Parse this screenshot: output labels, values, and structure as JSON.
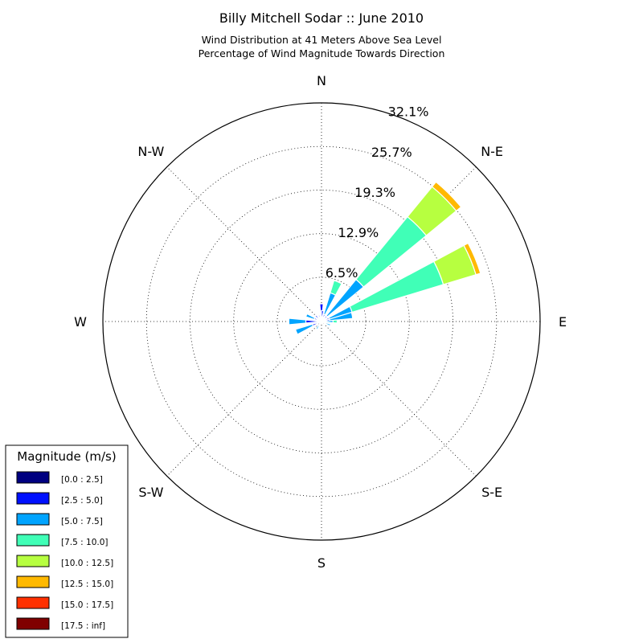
{
  "chart_data": {
    "type": "windrose",
    "title": "Billy Mitchell Sodar :: June 2010",
    "subtitle_lines": [
      "Wind Distribution at 41 Meters Above Sea Level",
      "Percentage of Wind Magnitude Towards Direction"
    ],
    "direction_labels": [
      {
        "label": "N",
        "angle": 0
      },
      {
        "label": "N-E",
        "angle": 45
      },
      {
        "label": "E",
        "angle": 90
      },
      {
        "label": "S-E",
        "angle": 135
      },
      {
        "label": "S",
        "angle": 180
      },
      {
        "label": "S-W",
        "angle": 225
      },
      {
        "label": "W",
        "angle": 270
      },
      {
        "label": "N-W",
        "angle": 315
      }
    ],
    "radial_ticks": [
      6.5,
      12.9,
      19.3,
      25.7,
      32.1
    ],
    "radial_tick_labels": [
      "6.5%",
      "12.9%",
      "19.3%",
      "25.7%",
      "32.1%"
    ],
    "r_max": 32.1,
    "grid": true,
    "legend": {
      "title": "Magnitude (m/s)",
      "placement": "bottom-left",
      "bins": [
        {
          "label": "[0.0 : 2.5]",
          "color": "#000080"
        },
        {
          "label": "[2.5 : 5.0]",
          "color": "#0010ff"
        },
        {
          "label": "[5.0 : 7.5]",
          "color": "#00a4ff"
        },
        {
          "label": "[7.5 : 10.0]",
          "color": "#40ffb7"
        },
        {
          "label": "[10.0 : 12.5]",
          "color": "#b7ff40"
        },
        {
          "label": "[12.5 : 15.0]",
          "color": "#ffb900"
        },
        {
          "label": "[15.0 : 17.5]",
          "color": "#ff3000"
        },
        {
          "label": "[17.5 : inf]",
          "color": "#800000"
        }
      ]
    },
    "sector_width_deg": 11.25,
    "sectors": [
      {
        "direction_deg": 0,
        "cumulative_pct": [
          0.2,
          2.6
        ]
      },
      {
        "direction_deg": 22.5,
        "cumulative_pct": [
          0.2,
          1.1,
          4.4,
          6.3
        ]
      },
      {
        "direction_deg": 45,
        "cumulative_pct": [
          0.2,
          1.1,
          8.0,
          19.9,
          25.6,
          26.5
        ]
      },
      {
        "direction_deg": 67.5,
        "cumulative_pct": [
          0.2,
          1.2,
          4.7,
          18.7,
          23.7,
          24.4
        ]
      },
      {
        "direction_deg": 78.75,
        "cumulative_pct": [
          0.2,
          1.2,
          4.6
        ]
      },
      {
        "direction_deg": 90,
        "cumulative_pct": [
          0.2,
          0.7,
          1.7,
          2.3
        ]
      },
      {
        "direction_deg": 112.5,
        "cumulative_pct": [
          0.2,
          0.7,
          1.4
        ]
      },
      {
        "direction_deg": 146.25,
        "cumulative_pct": [
          0.2,
          0.5
        ]
      },
      {
        "direction_deg": 213.75,
        "cumulative_pct": [
          0.2,
          0.6,
          1.3
        ]
      },
      {
        "direction_deg": 247.5,
        "cumulative_pct": [
          0.2,
          1.4,
          4.0
        ]
      },
      {
        "direction_deg": 270,
        "cumulative_pct": [
          0.3,
          2.3,
          4.8
        ]
      },
      {
        "direction_deg": 292.5,
        "cumulative_pct": [
          0.2,
          1.1,
          2.4
        ]
      },
      {
        "direction_deg": 315,
        "cumulative_pct": [
          0.2,
          1.2
        ]
      },
      {
        "direction_deg": 337.5,
        "cumulative_pct": [
          0.2,
          1.0
        ]
      },
      {
        "direction_deg": 5.6,
        "cumulative_pct": [
          0.2,
          1.6
        ]
      }
    ]
  }
}
